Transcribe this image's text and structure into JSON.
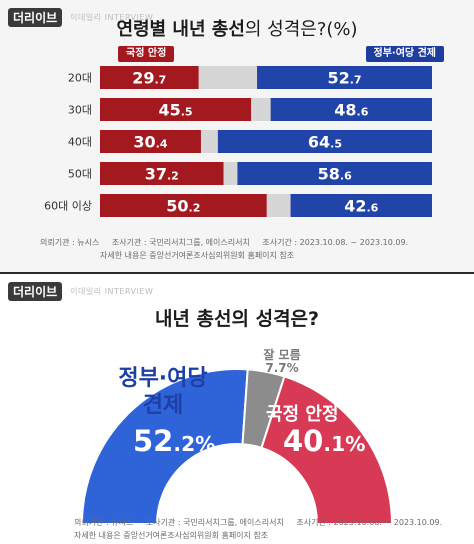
{
  "brand": {
    "logo": "더리이브",
    "sub": "이데일리 INTERVIEW"
  },
  "top": {
    "title_bold": "연령별 내년 총선",
    "title_rest": "의 성격은?(%)",
    "legend_left": "국정 안정",
    "legend_right": "정부·여당 견제",
    "colors": {
      "stability": "#a3191f",
      "check": "#2044a8",
      "gap": "#d6d6d6"
    },
    "footer": {
      "agency": "의뢰기관 : 뉴시스",
      "survey": "조사기관 : 국민리서치그룹, 에이스리서치",
      "period": "조사기간 : 2023.10.08. ~ 2023.10.09.",
      "note": "자세한 내용은 중앙선거여론조사심의위원회 홈페이지 참조"
    }
  },
  "bottom": {
    "title": "내년 총선의 성격은?",
    "gov_label_1": "정부·여당",
    "gov_label_2": "견제",
    "gov_value": "52.2%",
    "stab_label": "국정 안정",
    "stab_value": "40.1%",
    "dk_label": "잘 모름",
    "dk_value": "7.7%",
    "footer": {
      "agency": "의뢰기관 : 뉴시스",
      "survey": "조사기관 : 국민리서치그룹, 에이스리서치",
      "period": "조사기간 : 2023.10.08. ~ 2023.10.09.",
      "note": "자세한 내용은 중앙선거여론조사심의위원회 홈페이지 참조"
    }
  },
  "chart_data": [
    {
      "type": "bar",
      "title": "연령별 내년 총선의 성격은?(%)",
      "categories": [
        "20대",
        "30대",
        "40대",
        "50대",
        "60대 이상"
      ],
      "series": [
        {
          "name": "국정 안정",
          "values": [
            29.7,
            45.5,
            30.4,
            37.2,
            50.2
          ],
          "color": "#a3191f"
        },
        {
          "name": "정부·여당 견제",
          "values": [
            52.7,
            48.6,
            64.5,
            58.6,
            42.6
          ],
          "color": "#2044a8"
        }
      ],
      "ylim": [
        0,
        100
      ]
    },
    {
      "type": "pie",
      "title": "내년 총선의 성격은?",
      "categories": [
        "정부·여당 견제",
        "잘 모름",
        "국정 안정"
      ],
      "values": [
        52.2,
        7.7,
        40.1
      ],
      "colors": [
        "#2f63d8",
        "#8c8c8c",
        "#d83a56"
      ]
    }
  ]
}
